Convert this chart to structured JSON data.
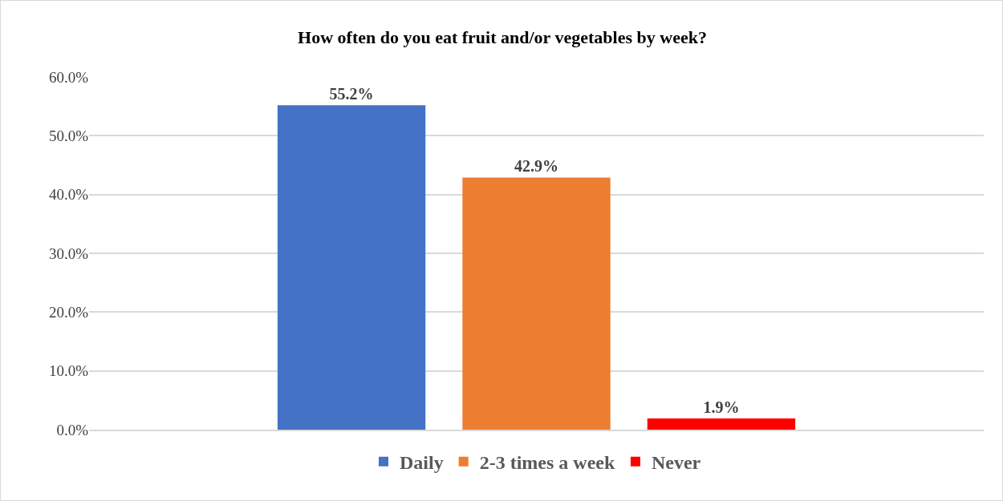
{
  "chart_data": {
    "type": "bar",
    "title": "How often do you eat fruit and/or vegetables by week?",
    "categories": [
      null
    ],
    "series": [
      {
        "name": "Daily",
        "color": "#4472c4",
        "values": [
          55.2
        ],
        "value_labels": [
          "55.2%"
        ]
      },
      {
        "name": "2-3 times a week",
        "color": "#ed7d31",
        "values": [
          42.9
        ],
        "value_labels": [
          "42.9%"
        ]
      },
      {
        "name": "Never",
        "color": "#ff0000",
        "values": [
          1.9
        ],
        "value_labels": [
          "1.9%"
        ]
      }
    ],
    "ylim": [
      0,
      60
    ],
    "yticks": [
      {
        "value": 0,
        "label": "0.0%"
      },
      {
        "value": 10,
        "label": "10.0%"
      },
      {
        "value": 20,
        "label": "20.0%"
      },
      {
        "value": 30,
        "label": "30.0%"
      },
      {
        "value": 40,
        "label": "40.0%"
      },
      {
        "value": 50,
        "label": "50.0%"
      },
      {
        "value": 60,
        "label": "60.0%"
      }
    ],
    "grid": "y",
    "legend": "bottom"
  }
}
